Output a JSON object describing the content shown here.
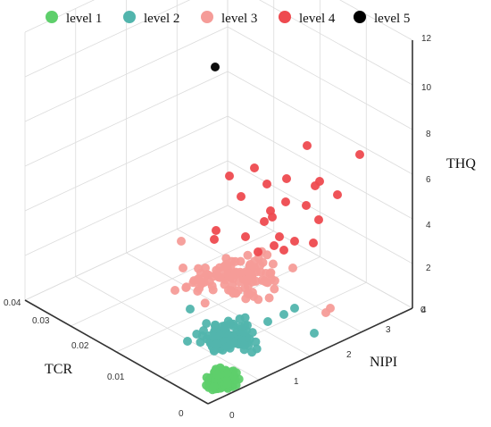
{
  "chart_data": {
    "type": "scatter3d",
    "axes": {
      "x": {
        "label": "TCR",
        "range": [
          0,
          0.04
        ],
        "ticks": [
          "0",
          "0.01",
          "0.02",
          "0.03",
          "0.04"
        ]
      },
      "y": {
        "label": "NIPI",
        "range": [
          0,
          4
        ],
        "ticks": [
          "0",
          "1",
          "2",
          "3",
          "4"
        ]
      },
      "z": {
        "label": "THQ",
        "range": [
          0,
          12
        ],
        "ticks": [
          "0",
          "2",
          "4",
          "6",
          "8",
          "10",
          "12"
        ]
      }
    },
    "grid": true,
    "legend_position": "top",
    "series": [
      {
        "name": "level 1",
        "color": "#5ecf6b"
      },
      {
        "name": "level 2",
        "color": "#52b5ad"
      },
      {
        "name": "level 3",
        "color": "#f59c98"
      },
      {
        "name": "level 4",
        "color": "#ee4a4f"
      },
      {
        "name": "level 5",
        "color": "#000000"
      }
    ]
  }
}
